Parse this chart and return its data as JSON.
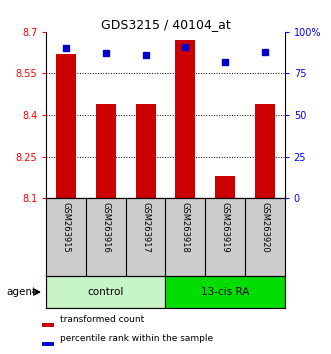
{
  "title": "GDS3215 / 40104_at",
  "samples": [
    "GSM263915",
    "GSM263916",
    "GSM263917",
    "GSM263918",
    "GSM263919",
    "GSM263920"
  ],
  "red_values": [
    8.62,
    8.44,
    8.44,
    8.67,
    8.18,
    8.44
  ],
  "blue_values": [
    90,
    87,
    86,
    91,
    82,
    88
  ],
  "ylim_left": [
    8.1,
    8.7
  ],
  "ylim_right": [
    0,
    100
  ],
  "yticks_left": [
    8.1,
    8.25,
    8.4,
    8.55,
    8.7
  ],
  "yticks_right": [
    0,
    25,
    50,
    75,
    100
  ],
  "ytick_labels_left": [
    "8.1",
    "8.25",
    "8.4",
    "8.55",
    "8.7"
  ],
  "ytick_labels_right": [
    "0",
    "25",
    "50",
    "75",
    "100%"
  ],
  "groups": [
    {
      "label": "control",
      "start": 0,
      "end": 3,
      "color": "#c8f5c8"
    },
    {
      "label": "13-cis RA",
      "start": 3,
      "end": 6,
      "color": "#00dd00"
    }
  ],
  "bar_color": "#cc0000",
  "dot_color": "#0000cc",
  "agent_label": "agent",
  "legend": [
    "transformed count",
    "percentile rank within the sample"
  ],
  "sample_bg": "#cccccc",
  "plot_bg": "#ffffff"
}
